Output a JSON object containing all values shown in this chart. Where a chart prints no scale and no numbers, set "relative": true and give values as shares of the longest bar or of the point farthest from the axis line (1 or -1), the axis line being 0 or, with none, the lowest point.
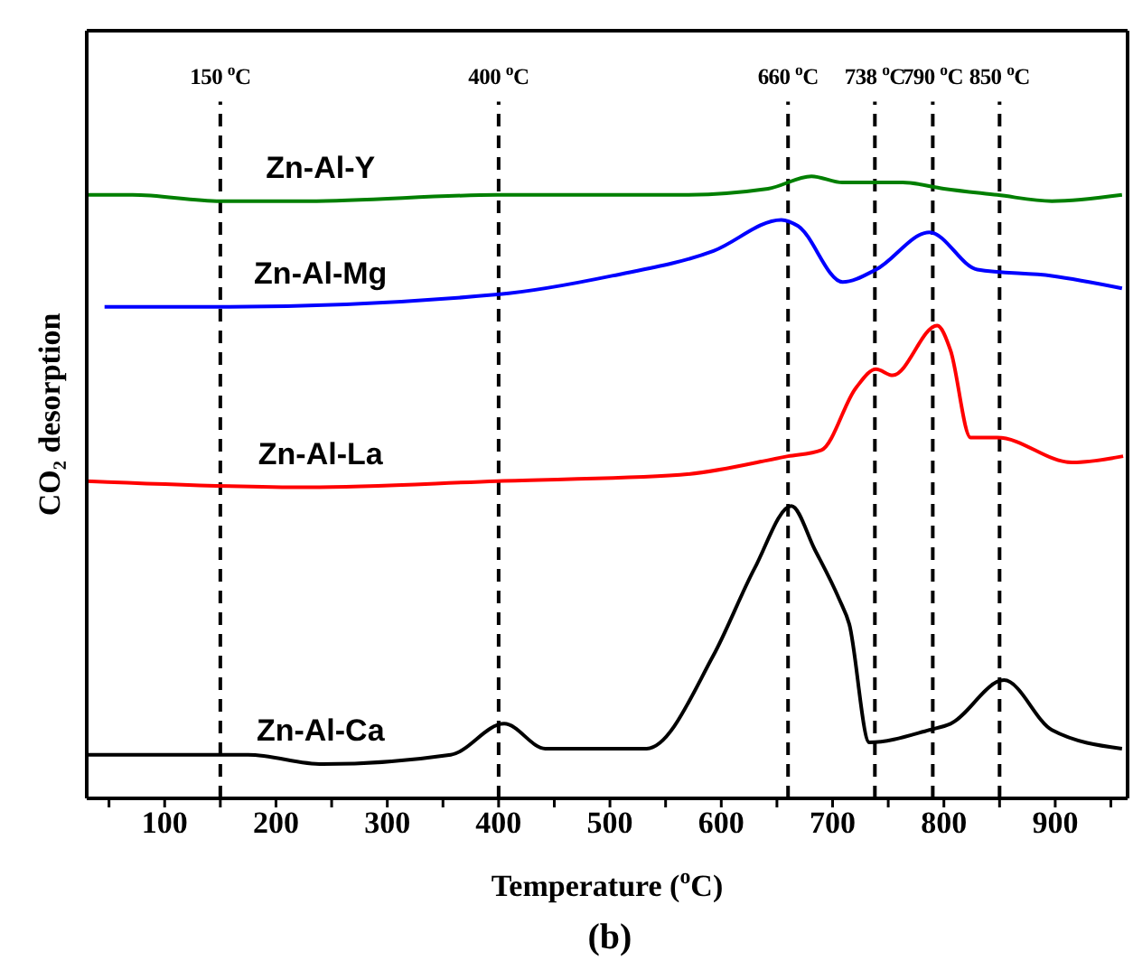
{
  "chart_data": {
    "type": "line",
    "relative": true,
    "xlabel": "Temperature ($^{o}$C)",
    "ylabel": "CO₂ desorption",
    "annotations": [
      "(b)"
    ],
    "xlim": [
      30,
      965
    ],
    "xticks": [
      {
        "value": 50,
        "label": null
      },
      100,
      {
        "value": 150,
        "label": null
      },
      200,
      {
        "value": 250,
        "label": null
      },
      300,
      {
        "value": 350,
        "label": null
      },
      400,
      {
        "value": 450,
        "label": null
      },
      500,
      {
        "value": 550,
        "label": null
      },
      600,
      {
        "value": 650,
        "label": null
      },
      700,
      {
        "value": 750,
        "label": null
      },
      800,
      {
        "value": 850,
        "label": null
      },
      900,
      {
        "value": 950,
        "label": null
      }
    ],
    "series": [
      {
        "name": "Zn-Al-Y",
        "color": "#007f00",
        "x": [
          30,
          71,
          150,
          229,
          399,
          563,
          642,
          681,
          709,
          763,
          800,
          848,
          897,
          960
        ],
        "values": [
          0.97,
          0.97,
          0.96,
          0.96,
          0.97,
          0.97,
          0.98,
          1.0,
          0.99,
          0.99,
          0.98,
          0.97,
          0.96,
          0.97
        ]
      },
      {
        "name": "Zn-Al-Mg",
        "color": "#0000ff",
        "x": [
          46,
          150,
          399,
          502,
          593,
          654,
          669,
          709,
          739,
          787,
          830,
          897,
          960
        ],
        "values": [
          0.79,
          0.79,
          0.81,
          0.84,
          0.88,
          0.93,
          0.92,
          0.83,
          0.85,
          0.91,
          0.85,
          0.84,
          0.82
        ]
      },
      {
        "name": "Zn-Al-La",
        "color": "#ff0000",
        "x": [
          30,
          229,
          399,
          563,
          660,
          690,
          721,
          739,
          754,
          794,
          806,
          824,
          848,
          915,
          961
        ],
        "values": [
          0.51,
          0.5,
          0.51,
          0.52,
          0.55,
          0.56,
          0.66,
          0.69,
          0.68,
          0.76,
          0.72,
          0.58,
          0.58,
          0.54,
          0.55
        ]
      },
      {
        "name": "Zn-Al-Ca",
        "color": "#000000",
        "x": [
          30,
          175,
          242,
          357,
          405,
          442,
          533,
          593,
          630,
          663,
          684,
          706,
          715,
          733,
          787,
          806,
          854,
          897,
          960
        ],
        "values": [
          0.07,
          0.07,
          0.055,
          0.07,
          0.12,
          0.08,
          0.08,
          0.23,
          0.37,
          0.47,
          0.4,
          0.32,
          0.28,
          0.09,
          0.11,
          0.12,
          0.19,
          0.11,
          0.08
        ]
      }
    ],
    "ref_lines": [
      {
        "axis": "x",
        "value": 150,
        "label": "150 $^{o}$C",
        "color": "#000000",
        "line_style": "dashed"
      },
      {
        "axis": "x",
        "value": 400,
        "label": "400 $^{o}$C",
        "color": "#000000",
        "line_style": "dashed"
      },
      {
        "axis": "x",
        "value": 660,
        "label": "660 $^{o}$C",
        "color": "#000000",
        "line_style": "dashed"
      },
      {
        "axis": "x",
        "value": 738,
        "label": "738 $^{o}$C",
        "color": "#000000",
        "line_style": "dashed"
      },
      {
        "axis": "x",
        "value": 790,
        "label": "790 $^{o}$C",
        "color": "#000000",
        "line_style": "dashed"
      },
      {
        "axis": "x",
        "value": 850,
        "label": "850 $^{o}$C",
        "color": "#000000",
        "line_style": "dashed"
      }
    ],
    "line_style": "solid"
  }
}
